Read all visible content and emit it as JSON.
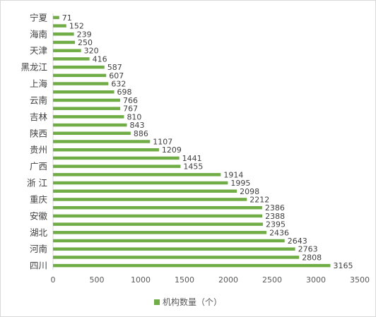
{
  "chart_data": {
    "type": "bar",
    "orientation": "horizontal",
    "series": [
      {
        "name": "机构数量（个）",
        "values": [
          71,
          152,
          239,
          250,
          320,
          416,
          587,
          607,
          632,
          698,
          766,
          767,
          810,
          843,
          886,
          1107,
          1209,
          1441,
          1455,
          1914,
          1995,
          2098,
          2212,
          2386,
          2388,
          2395,
          2436,
          2643,
          2763,
          2808,
          3165
        ],
        "color": "#70ad47"
      }
    ],
    "categories": [
      "宁夏",
      "",
      "海南",
      "",
      "天津",
      "",
      "黑龙江",
      "",
      "上海",
      "",
      "云南",
      "",
      "吉林",
      "",
      "陕西",
      "",
      "贵州",
      "",
      "广西",
      "",
      "浙 江",
      "",
      "重庆",
      "",
      "安徽",
      "",
      "湖北",
      "",
      "河南",
      "",
      "四川"
    ],
    "xlim": [
      0,
      3500
    ],
    "x_ticks": [
      0,
      500,
      1000,
      1500,
      2000,
      2500,
      3000,
      3500
    ],
    "grid": true,
    "legend_position": "bottom",
    "title": "",
    "xlabel": "",
    "ylabel": ""
  }
}
